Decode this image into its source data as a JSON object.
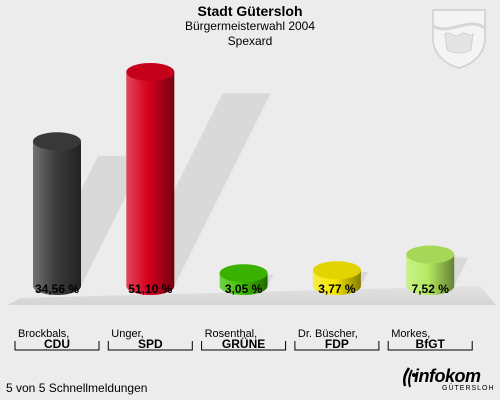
{
  "header": {
    "title": "Stadt Gütersloh",
    "subtitle": "Bürgermeisterwahl 2004",
    "district": "Spexard"
  },
  "footer": {
    "status": "5 von 5 Schnellmeldungen"
  },
  "logo": {
    "brand": "infokom",
    "sub": "GÜTERSLOH"
  },
  "chart_data": {
    "type": "bar",
    "title": "Bürgermeisterwahl 2004",
    "categories": [
      "Brockbals, CDU",
      "Unger, SPD",
      "Rosenthal, GRÜNE",
      "Dr. Büscher, FDP",
      "Morkes, BfGT"
    ],
    "candidates": [
      "Brockbals,",
      "Unger,",
      "Rosenthal,",
      "Dr. Büscher,",
      "Morkes,"
    ],
    "parties": [
      "CDU",
      "SPD",
      "GRÜNE",
      "FDP",
      "BfGT"
    ],
    "values": [
      34.56,
      51.1,
      3.05,
      3.77,
      7.52
    ],
    "value_labels": [
      "34,56 %",
      "51,10 %",
      "3,05 %",
      "3,77 %",
      "7,52 %"
    ],
    "colors": [
      "#3d3d3d",
      "#d6001c",
      "#3ec000",
      "#f5e600",
      "#b6ea60"
    ],
    "unit": "%",
    "ylim": [
      0,
      51.1
    ],
    "grid": false,
    "legend": "none"
  }
}
